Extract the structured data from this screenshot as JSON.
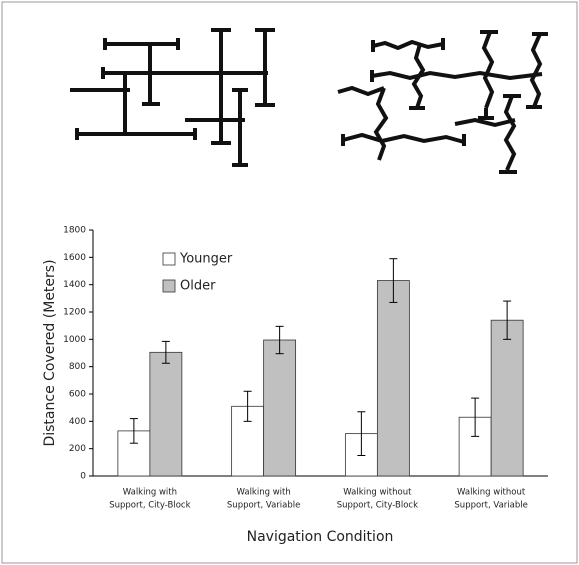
{
  "chart_data": {
    "type": "bar",
    "y_label": "Distance Covered (Meters)",
    "x_label": "Navigation Condition",
    "categories": [
      [
        "Walking with",
        "Support, City-Block"
      ],
      [
        "Walking with",
        "Support, Variable"
      ],
      [
        "Walking without",
        "Support, City-Block"
      ],
      [
        "Walking without",
        "Support, Variable"
      ]
    ],
    "series": [
      {
        "name": "Younger",
        "color": "#ffffff",
        "values": [
          330,
          510,
          310,
          430
        ],
        "errors": [
          90,
          110,
          160,
          140
        ]
      },
      {
        "name": "Older",
        "color": "#c0c0c0",
        "values": [
          905,
          995,
          1430,
          1140
        ],
        "errors": [
          80,
          100,
          160,
          140
        ]
      }
    ],
    "ylim": [
      0,
      1800
    ],
    "yticks": [
      0,
      200,
      400,
      600,
      800,
      1000,
      1200,
      1400,
      1600,
      1800
    ],
    "legend": "upper-left"
  }
}
